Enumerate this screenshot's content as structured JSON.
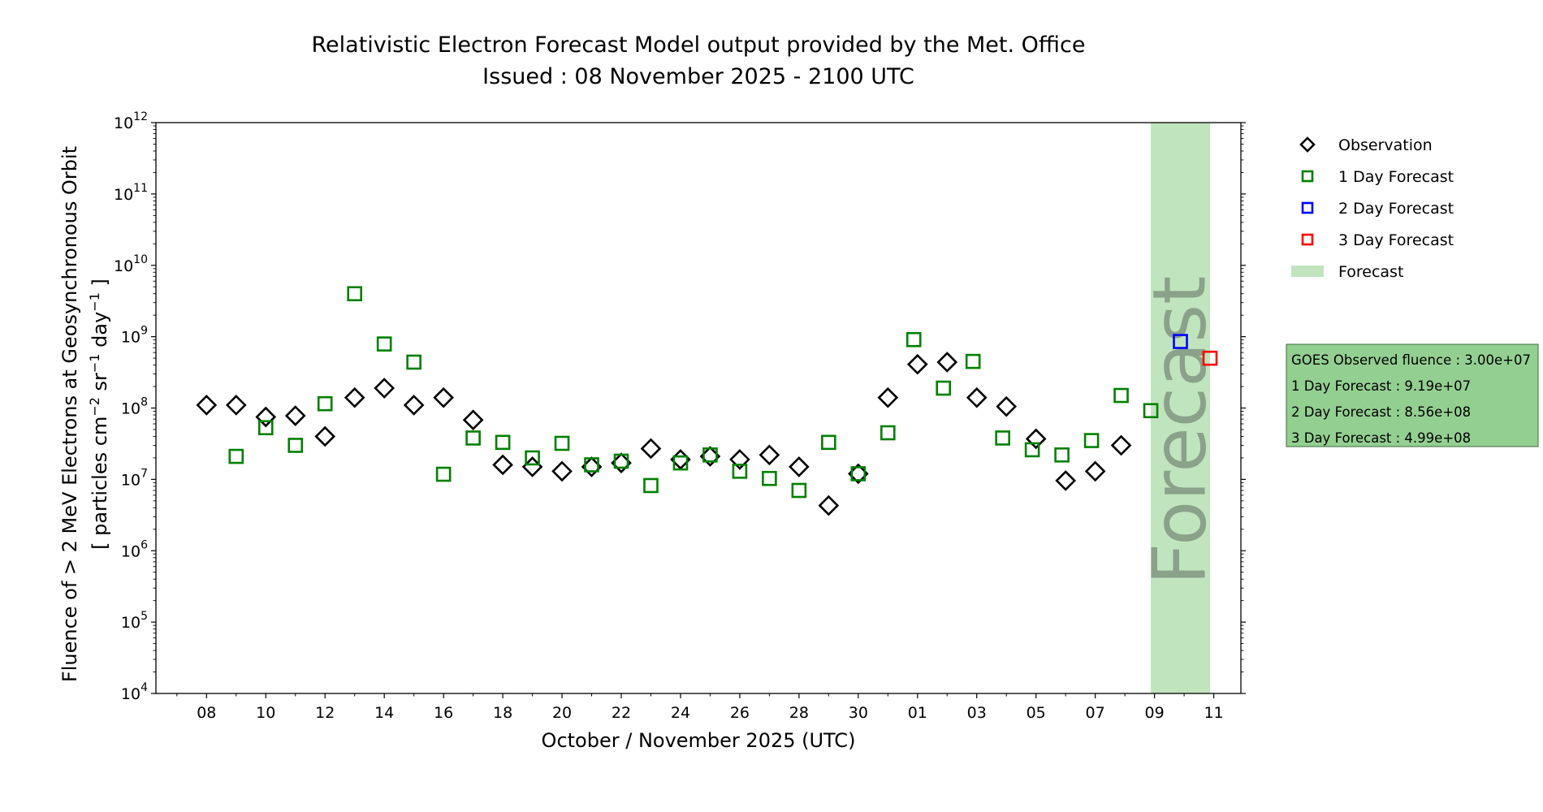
{
  "chart_data": {
    "type": "scatter",
    "title": "Relativistic Electron Forecast Model output provided by the Met. Office",
    "subtitle": "Issued : 08 November 2025 - 2100 UTC",
    "xlabel": "October / November 2025 (UTC)",
    "ylabel": {
      "line1": "Fluence of > 2 MeV Electrons at Geosynchronous Orbit",
      "line2_prefix": "[ particles cm",
      "line2_exp1": "−2",
      "line2_mid": " sr",
      "line2_exp2": "−1",
      "line2_suffix1": " day",
      "line2_exp3": "−1",
      "line2_end": " ]"
    },
    "x_scale": "date",
    "xlim": [
      "2025-10-06T07:00",
      "2025-11-11T22:00"
    ],
    "x_ticks": [
      {
        "date": "2025-10-08",
        "label": "08"
      },
      {
        "date": "2025-10-10",
        "label": "10"
      },
      {
        "date": "2025-10-12",
        "label": "12"
      },
      {
        "date": "2025-10-14",
        "label": "14"
      },
      {
        "date": "2025-10-16",
        "label": "16"
      },
      {
        "date": "2025-10-18",
        "label": "18"
      },
      {
        "date": "2025-10-20",
        "label": "20"
      },
      {
        "date": "2025-10-22",
        "label": "22"
      },
      {
        "date": "2025-10-24",
        "label": "24"
      },
      {
        "date": "2025-10-26",
        "label": "26"
      },
      {
        "date": "2025-10-28",
        "label": "28"
      },
      {
        "date": "2025-10-30",
        "label": "30"
      },
      {
        "date": "2025-11-01",
        "label": "01"
      },
      {
        "date": "2025-11-03",
        "label": "03"
      },
      {
        "date": "2025-11-05",
        "label": "05"
      },
      {
        "date": "2025-11-07",
        "label": "07"
      },
      {
        "date": "2025-11-09",
        "label": "09"
      },
      {
        "date": "2025-11-11",
        "label": "11"
      }
    ],
    "y_scale": "log",
    "ylim": [
      10000,
      1000000000000
    ],
    "y_ticks": [
      {
        "value": 10000,
        "base": "10",
        "exp": "4"
      },
      {
        "value": 100000,
        "base": "10",
        "exp": "5"
      },
      {
        "value": 1000000,
        "base": "10",
        "exp": "6"
      },
      {
        "value": 10000000,
        "base": "10",
        "exp": "7"
      },
      {
        "value": 100000000,
        "base": "10",
        "exp": "8"
      },
      {
        "value": 1000000000,
        "base": "10",
        "exp": "9"
      },
      {
        "value": 10000000000,
        "base": "10",
        "exp": "10"
      },
      {
        "value": 100000000000,
        "base": "10",
        "exp": "11"
      },
      {
        "value": 1000000000000,
        "base": "10",
        "exp": "12"
      }
    ],
    "grid": false,
    "legend_position": "right",
    "legend": [
      {
        "label": "Observation",
        "marker": "diamond",
        "color": "#000000"
      },
      {
        "label": "1 Day Forecast",
        "marker": "square",
        "color": "#008000"
      },
      {
        "label": "2 Day Forecast",
        "marker": "square",
        "color": "#0000ff"
      },
      {
        "label": "3 Day Forecast",
        "marker": "square",
        "color": "#ff0000"
      },
      {
        "label": "Forecast",
        "marker": "band",
        "color": "#c0e4bd"
      }
    ],
    "forecast_band": {
      "start": "2025-11-08T21:00",
      "end": "2025-11-10T21:00",
      "label": "Forecast",
      "fill": "#c0e4bd",
      "text_color": "#8aa18a"
    },
    "series": [
      {
        "name": "Observation",
        "marker": "diamond",
        "color": "#000000",
        "points": [
          {
            "x": "2025-10-08",
            "y": 110000000
          },
          {
            "x": "2025-10-09",
            "y": 110000000
          },
          {
            "x": "2025-10-10",
            "y": 75000000
          },
          {
            "x": "2025-10-11",
            "y": 78000000
          },
          {
            "x": "2025-10-12",
            "y": 40000000
          },
          {
            "x": "2025-10-13",
            "y": 140000000
          },
          {
            "x": "2025-10-14",
            "y": 190000000
          },
          {
            "x": "2025-10-15",
            "y": 110000000
          },
          {
            "x": "2025-10-16",
            "y": 140000000
          },
          {
            "x": "2025-10-17",
            "y": 68000000
          },
          {
            "x": "2025-10-18",
            "y": 16000000
          },
          {
            "x": "2025-10-19",
            "y": 15000000
          },
          {
            "x": "2025-10-20",
            "y": 13000000
          },
          {
            "x": "2025-10-21",
            "y": 15000000
          },
          {
            "x": "2025-10-22",
            "y": 17000000
          },
          {
            "x": "2025-10-23",
            "y": 27000000
          },
          {
            "x": "2025-10-24",
            "y": 19000000
          },
          {
            "x": "2025-10-25",
            "y": 21000000
          },
          {
            "x": "2025-10-26",
            "y": 19000000
          },
          {
            "x": "2025-10-27",
            "y": 22000000
          },
          {
            "x": "2025-10-28",
            "y": 15000000
          },
          {
            "x": "2025-10-29",
            "y": 4300000
          },
          {
            "x": "2025-10-30",
            "y": 12000000
          },
          {
            "x": "2025-10-31",
            "y": 140000000
          },
          {
            "x": "2025-11-01",
            "y": 410000000
          },
          {
            "x": "2025-11-02",
            "y": 440000000
          },
          {
            "x": "2025-11-03",
            "y": 140000000
          },
          {
            "x": "2025-11-04",
            "y": 105000000
          },
          {
            "x": "2025-11-05",
            "y": 37000000
          },
          {
            "x": "2025-11-06",
            "y": 9600000
          },
          {
            "x": "2025-11-07",
            "y": 13000000
          },
          {
            "x": "2025-11-07T21:00",
            "y": 30000000
          }
        ]
      },
      {
        "name": "1 Day Forecast",
        "marker": "square",
        "color": "#008000",
        "points": [
          {
            "x": "2025-10-09",
            "y": 21000000
          },
          {
            "x": "2025-10-10",
            "y": 53000000
          },
          {
            "x": "2025-10-11",
            "y": 30000000
          },
          {
            "x": "2025-10-12",
            "y": 115000000
          },
          {
            "x": "2025-10-13",
            "y": 4000000000
          },
          {
            "x": "2025-10-14",
            "y": 790000000
          },
          {
            "x": "2025-10-15",
            "y": 440000000
          },
          {
            "x": "2025-10-16",
            "y": 11800000
          },
          {
            "x": "2025-10-17",
            "y": 38000000
          },
          {
            "x": "2025-10-18",
            "y": 33000000
          },
          {
            "x": "2025-10-19",
            "y": 20000000
          },
          {
            "x": "2025-10-20",
            "y": 32000000
          },
          {
            "x": "2025-10-21",
            "y": 16000000
          },
          {
            "x": "2025-10-22",
            "y": 18000000
          },
          {
            "x": "2025-10-23",
            "y": 8200000
          },
          {
            "x": "2025-10-24",
            "y": 17000000
          },
          {
            "x": "2025-10-25",
            "y": 22000000
          },
          {
            "x": "2025-10-26",
            "y": 13000000
          },
          {
            "x": "2025-10-27",
            "y": 10300000
          },
          {
            "x": "2025-10-28",
            "y": 7000000
          },
          {
            "x": "2025-10-29",
            "y": 33000000
          },
          {
            "x": "2025-10-30",
            "y": 12000000
          },
          {
            "x": "2025-10-31",
            "y": 45000000
          },
          {
            "x": "2025-10-31T21:00",
            "y": 910000000
          },
          {
            "x": "2025-11-01T21:00",
            "y": 190000000
          },
          {
            "x": "2025-11-02T21:00",
            "y": 450000000
          },
          {
            "x": "2025-11-03T21:00",
            "y": 38000000
          },
          {
            "x": "2025-11-04T21:00",
            "y": 26000000
          },
          {
            "x": "2025-11-05T21:00",
            "y": 22000000
          },
          {
            "x": "2025-11-06T21:00",
            "y": 35000000
          },
          {
            "x": "2025-11-07T21:00",
            "y": 150000000
          },
          {
            "x": "2025-11-08T21:00",
            "y": 91900000
          }
        ]
      },
      {
        "name": "2 Day Forecast",
        "marker": "square",
        "color": "#0000ff",
        "points": [
          {
            "x": "2025-11-09T21:00",
            "y": 856000000
          }
        ]
      },
      {
        "name": "3 Day Forecast",
        "marker": "square",
        "color": "#ff0000",
        "points": [
          {
            "x": "2025-11-10T21:00",
            "y": 499000000
          }
        ]
      }
    ],
    "info_box": {
      "fill": "#94cf92",
      "border": "#3c6b3c",
      "lines": [
        "GOES Observed fluence : 3.00e+07",
        "1 Day Forecast : 9.19e+07",
        "2 Day Forecast : 8.56e+08",
        "3 Day Forecast : 4.99e+08"
      ]
    }
  }
}
